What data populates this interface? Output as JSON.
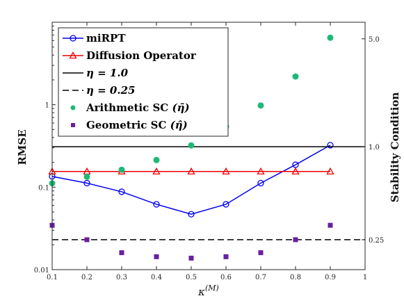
{
  "chart_data": {
    "type": "line",
    "xlabel": "κ",
    "xlabel_sup": "(M)",
    "ylabel_left": "RMSE",
    "ylabel_right": "Stability Condition",
    "x_ticks": [
      "0.1",
      "0.2",
      "0.3",
      "0.4",
      "0.5",
      "0.6",
      "0.7",
      "0.8",
      "0.9",
      "1"
    ],
    "x_range": [
      0.1,
      1.0
    ],
    "y_left_scale": "log",
    "y_left_range": [
      0.01,
      10
    ],
    "y_left_ticks": [
      {
        "value": 0.01,
        "label": "0.01"
      },
      {
        "value": 0.1,
        "label": "0.1"
      },
      {
        "value": 1,
        "label": "1"
      }
    ],
    "y_right_scale": "log",
    "y_right_range": [
      0.16,
      6.4
    ],
    "y_right_ticks": [
      {
        "value": 0.25,
        "label": "0.25"
      },
      {
        "value": 1.0,
        "label": "1.0"
      },
      {
        "value": 5.0,
        "label": "5.0"
      }
    ],
    "grid": false,
    "legend_position": "top-left",
    "series": [
      {
        "name": "miRPT",
        "axis": "left",
        "kind": "line",
        "marker": "circle",
        "color": "#0000ee",
        "x": [
          0.1,
          0.2,
          0.3,
          0.4,
          0.5,
          0.6,
          0.7,
          0.8,
          0.9
        ],
        "y": [
          0.135,
          0.112,
          0.088,
          0.062,
          0.047,
          0.062,
          0.112,
          0.187,
          0.323
        ]
      },
      {
        "name": "Diffusion Operator",
        "axis": "left",
        "kind": "line",
        "marker": "triangle",
        "color": "#ee0000",
        "x": [
          0.1,
          0.2,
          0.3,
          0.4,
          0.5,
          0.6,
          0.7,
          0.8,
          0.9
        ],
        "y": [
          0.155,
          0.155,
          0.155,
          0.155,
          0.155,
          0.155,
          0.155,
          0.155,
          0.155
        ]
      },
      {
        "name": "η = 1.0",
        "axis": "right",
        "kind": "hline",
        "style": "solid",
        "color": "#000000",
        "value": 1.0
      },
      {
        "name": "η = 0.25",
        "axis": "right",
        "kind": "hline",
        "style": "dashed",
        "color": "#000000",
        "value": 0.25
      },
      {
        "name": "Arithmetic SC",
        "math": "(η̄)",
        "axis": "right",
        "kind": "scatter",
        "marker": "dot",
        "color": "#1fb877",
        "x": [
          0.1,
          0.2,
          0.3,
          0.4,
          0.5,
          0.6,
          0.7,
          0.8,
          0.9
        ],
        "y": [
          0.58,
          0.64,
          0.71,
          0.82,
          1.02,
          1.35,
          1.85,
          2.85,
          5.08
        ]
      },
      {
        "name": "Geometric SC",
        "math": "(η̂)",
        "axis": "right",
        "kind": "scatter",
        "marker": "square",
        "color": "#6a1fa0",
        "x": [
          0.1,
          0.2,
          0.3,
          0.4,
          0.5,
          0.6,
          0.7,
          0.8,
          0.9
        ],
        "y": [
          0.31,
          0.25,
          0.206,
          0.194,
          0.19,
          0.194,
          0.206,
          0.25,
          0.31
        ]
      }
    ]
  }
}
